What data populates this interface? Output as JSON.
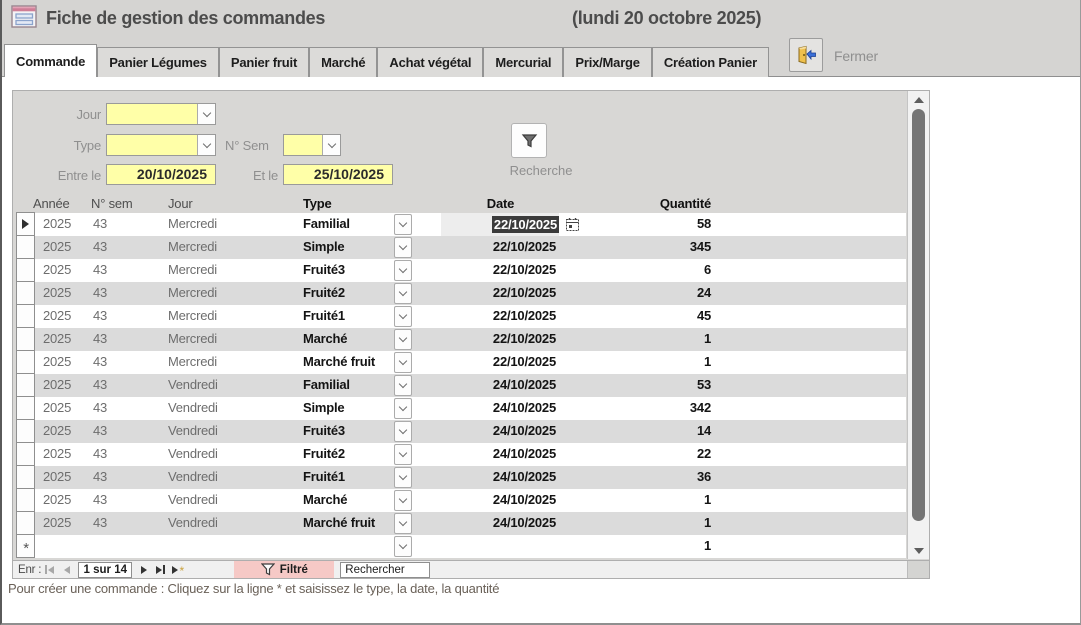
{
  "header": {
    "title": "Fiche de gestion des commandes",
    "date_note": "(lundi 20 octobre 2025)",
    "close_label": "Fermer"
  },
  "tabs": [
    {
      "label": "Commande",
      "active": true
    },
    {
      "label": "Panier Légumes",
      "active": false
    },
    {
      "label": "Panier fruit",
      "active": false
    },
    {
      "label": "Marché",
      "active": false
    },
    {
      "label": "Achat végétal",
      "active": false
    },
    {
      "label": "Mercurial",
      "active": false
    },
    {
      "label": "Prix/Marge",
      "active": false
    },
    {
      "label": "Création Panier",
      "active": false
    }
  ],
  "filters": {
    "jour_label": "Jour",
    "type_label": "Type",
    "sem_label": "N° Sem",
    "entre_label": "Entre le",
    "entre_value": "20/10/2025",
    "et_label": "Et le",
    "et_value": "25/10/2025",
    "search_label": "Recherche"
  },
  "table": {
    "headers": {
      "annee": "Année",
      "sem": "N° sem",
      "jour": "Jour",
      "type": "Type",
      "date": "Date",
      "qty": "Quantité"
    },
    "rows": [
      {
        "annee": "2025",
        "sem": "43",
        "jour": "Mercredi",
        "type": "Familial",
        "date": "22/10/2025",
        "qty": "58",
        "selected": true
      },
      {
        "annee": "2025",
        "sem": "43",
        "jour": "Mercredi",
        "type": "Simple",
        "date": "22/10/2025",
        "qty": "345"
      },
      {
        "annee": "2025",
        "sem": "43",
        "jour": "Mercredi",
        "type": "Fruité3",
        "date": "22/10/2025",
        "qty": "6"
      },
      {
        "annee": "2025",
        "sem": "43",
        "jour": "Mercredi",
        "type": "Fruité2",
        "date": "22/10/2025",
        "qty": "24"
      },
      {
        "annee": "2025",
        "sem": "43",
        "jour": "Mercredi",
        "type": "Fruité1",
        "date": "22/10/2025",
        "qty": "45"
      },
      {
        "annee": "2025",
        "sem": "43",
        "jour": "Mercredi",
        "type": "Marché",
        "date": "22/10/2025",
        "qty": "1"
      },
      {
        "annee": "2025",
        "sem": "43",
        "jour": "Mercredi",
        "type": "Marché fruit",
        "date": "22/10/2025",
        "qty": "1"
      },
      {
        "annee": "2025",
        "sem": "43",
        "jour": "Vendredi",
        "type": "Familial",
        "date": "24/10/2025",
        "qty": "53"
      },
      {
        "annee": "2025",
        "sem": "43",
        "jour": "Vendredi",
        "type": "Simple",
        "date": "24/10/2025",
        "qty": "342"
      },
      {
        "annee": "2025",
        "sem": "43",
        "jour": "Vendredi",
        "type": "Fruité3",
        "date": "24/10/2025",
        "qty": "14"
      },
      {
        "annee": "2025",
        "sem": "43",
        "jour": "Vendredi",
        "type": "Fruité2",
        "date": "24/10/2025",
        "qty": "22"
      },
      {
        "annee": "2025",
        "sem": "43",
        "jour": "Vendredi",
        "type": "Fruité1",
        "date": "24/10/2025",
        "qty": "36"
      },
      {
        "annee": "2025",
        "sem": "43",
        "jour": "Vendredi",
        "type": "Marché",
        "date": "24/10/2025",
        "qty": "1"
      },
      {
        "annee": "2025",
        "sem": "43",
        "jour": "Vendredi",
        "type": "Marché fruit",
        "date": "24/10/2025",
        "qty": "1"
      }
    ],
    "new_row": {
      "marker": "*",
      "qty": "1"
    }
  },
  "nav": {
    "label": "Enr :",
    "position": "1 sur 14",
    "filtered_label": "Filtré",
    "search_value": "Rechercher"
  },
  "footer_hint": "Pour créer une commande : Cliquez sur la ligne * et saisissez le type, la date, la quantité",
  "colors": {
    "field_yellow": "#ffffa8",
    "selection_bg": "#3b3b3b",
    "filter_pink": "#f6c9c6",
    "chrome_gray": "#d5d4d2"
  }
}
